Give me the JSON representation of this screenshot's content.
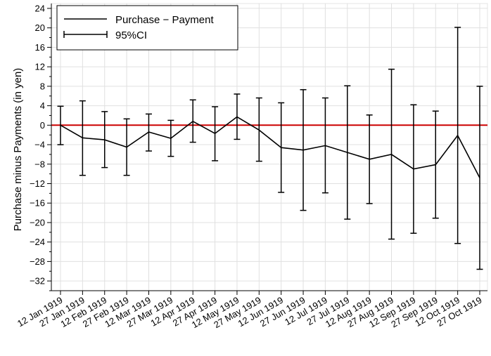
{
  "chart_data": {
    "type": "line",
    "title": "",
    "xlabel": "",
    "ylabel": "Purchase minus Payments (in yen)",
    "ylim": [
      -34,
      25
    ],
    "yticks": [
      24,
      20,
      16,
      12,
      8,
      4,
      0,
      -4,
      -8,
      -12,
      -16,
      -20,
      -24,
      -28,
      -32
    ],
    "grid": true,
    "legend_position": "top-left",
    "reference_line": {
      "y": 0,
      "color": "#cc0000"
    },
    "categories": [
      "12 Jan 1919",
      "27 Jan 1919",
      "12 Feb 1919",
      "27 Feb 1919",
      "12 Mar 1919",
      "27 Mar 1919",
      "12 Apr 1919",
      "27 Apr 1919",
      "12 May 1919",
      "27 May 1919",
      "12 Jun 1919",
      "27 Jun 1919",
      "12 Jul 1919",
      "27 Jul 1919",
      "12 Aug 1919",
      "27 Aug 1919",
      "12 Sep 1919",
      "27 Sep 1919",
      "12 Oct 1919",
      "27 Oct 1919"
    ],
    "series": [
      {
        "name": "Purchase − Payment",
        "color": "#000000",
        "values": [
          0,
          -2.6,
          -3,
          -4.5,
          -1.4,
          -2.7,
          0.8,
          -1.7,
          1.7,
          -1,
          -4.6,
          -5.1,
          -4.2,
          -5.6,
          -7,
          -6,
          -9,
          -8.1,
          -2.1,
          -10.8
        ],
        "ci_low": [
          -4,
          -10.3,
          -8.7,
          -10.3,
          -5.3,
          -6.4,
          -3.5,
          -7.3,
          -2.9,
          -7.4,
          -13.8,
          -17.5,
          -13.9,
          -19.3,
          -16.1,
          -23.4,
          -22.2,
          -19.1,
          -24.3,
          -29.6
        ],
        "ci_high": [
          3.9,
          5,
          2.8,
          1.3,
          2.3,
          1,
          5.2,
          3.8,
          6.4,
          5.6,
          4.6,
          7.3,
          5.6,
          8.1,
          2.1,
          11.5,
          4.2,
          2.9,
          20.1,
          8
        ]
      }
    ],
    "legend": [
      {
        "label": "Purchase − Payment",
        "marker": "line"
      },
      {
        "label": "95%CI",
        "marker": "errorbar"
      }
    ]
  }
}
